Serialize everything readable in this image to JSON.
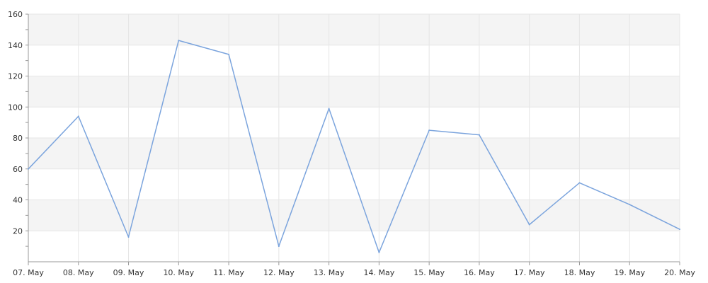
{
  "chart_data": {
    "type": "line",
    "title": "",
    "xlabel": "",
    "ylabel": "",
    "categories": [
      "07. May",
      "08. May",
      "09. May",
      "10. May",
      "11. May",
      "12. May",
      "13. May",
      "14. May",
      "15. May",
      "16. May",
      "17. May",
      "18. May",
      "19. May",
      "20. May"
    ],
    "series": [
      {
        "values": [
          60,
          94,
          16,
          143,
          134,
          10,
          99,
          6,
          85,
          82,
          24,
          51,
          37,
          21
        ],
        "color": "#7ba4dd"
      }
    ],
    "ylim": [
      0,
      160
    ],
    "yticks": [
      20,
      40,
      60,
      80,
      100,
      120,
      140,
      160
    ],
    "grid": true,
    "band_colors": [
      "#f4f4f4",
      "#ffffff"
    ],
    "legend": "none"
  }
}
